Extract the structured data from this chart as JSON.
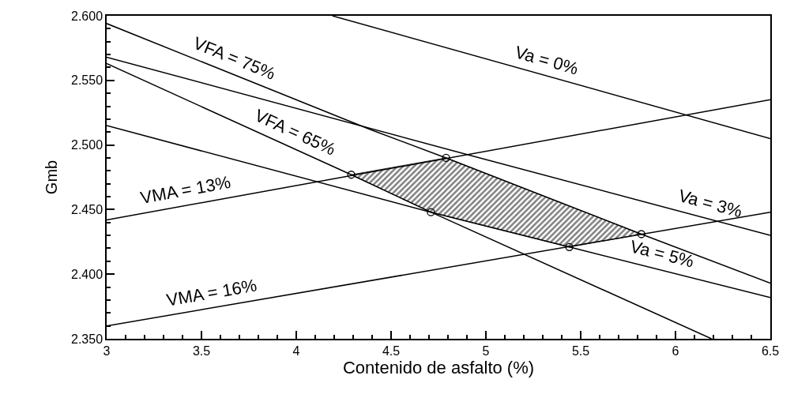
{
  "chart_data": {
    "type": "line",
    "xlabel": "Contenido de asfalto (%)",
    "ylabel": "Gmb",
    "xlim": [
      3,
      6.5
    ],
    "ylim": [
      2.35,
      2.6
    ],
    "xticks": [
      3,
      3.5,
      4,
      4.5,
      5,
      5.5,
      6,
      6.5,
      {
        "value": 3.1,
        "label": null
      },
      {
        "value": 3.2,
        "label": null
      },
      {
        "value": 3.3,
        "label": null
      },
      {
        "value": 3.4,
        "label": null
      },
      {
        "value": 3.6,
        "label": null
      },
      {
        "value": 3.7,
        "label": null
      },
      {
        "value": 3.8,
        "label": null
      },
      {
        "value": 3.9,
        "label": null
      },
      {
        "value": 4.1,
        "label": null
      },
      {
        "value": 4.2,
        "label": null
      },
      {
        "value": 4.3,
        "label": null
      },
      {
        "value": 4.4,
        "label": null
      },
      {
        "value": 4.6,
        "label": null
      },
      {
        "value": 4.7,
        "label": null
      },
      {
        "value": 4.8,
        "label": null
      },
      {
        "value": 4.9,
        "label": null
      },
      {
        "value": 5.1,
        "label": null
      },
      {
        "value": 5.2,
        "label": null
      },
      {
        "value": 5.3,
        "label": null
      },
      {
        "value": 5.4,
        "label": null
      },
      {
        "value": 5.6,
        "label": null
      },
      {
        "value": 5.7,
        "label": null
      },
      {
        "value": 5.8,
        "label": null
      },
      {
        "value": 5.9,
        "label": null
      },
      {
        "value": 6.1,
        "label": null
      },
      {
        "value": 6.2,
        "label": null
      },
      {
        "value": 6.3,
        "label": null
      },
      {
        "value": 6.4,
        "label": null
      }
    ],
    "yticks": [
      {
        "value": 2.35,
        "label": "2.350"
      },
      {
        "value": 2.4,
        "label": "2.400"
      },
      {
        "value": 2.45,
        "label": "2.450"
      },
      {
        "value": 2.5,
        "label": "2.500"
      },
      {
        "value": 2.55,
        "label": "2.550"
      },
      {
        "value": 2.6,
        "label": "2.600"
      },
      {
        "value": 2.36,
        "label": null
      },
      {
        "value": 2.37,
        "label": null
      },
      {
        "value": 2.38,
        "label": null
      },
      {
        "value": 2.39,
        "label": null
      },
      {
        "value": 2.41,
        "label": null
      },
      {
        "value": 2.42,
        "label": null
      },
      {
        "value": 2.43,
        "label": null
      },
      {
        "value": 2.44,
        "label": null
      },
      {
        "value": 2.46,
        "label": null
      },
      {
        "value": 2.47,
        "label": null
      },
      {
        "value": 2.48,
        "label": null
      },
      {
        "value": 2.49,
        "label": null
      },
      {
        "value": 2.51,
        "label": null
      },
      {
        "value": 2.52,
        "label": null
      },
      {
        "value": 2.53,
        "label": null
      },
      {
        "value": 2.54,
        "label": null
      },
      {
        "value": 2.56,
        "label": null
      },
      {
        "value": 2.57,
        "label": null
      },
      {
        "value": 2.58,
        "label": null
      },
      {
        "value": 2.59,
        "label": null
      }
    ],
    "series": [
      {
        "type": "area",
        "color": "#000000",
        "x": [
          4.29,
          4.79,
          5.82,
          5.44,
          4.71,
          4.29
        ],
        "values": [
          2.477,
          2.49,
          2.431,
          2.421,
          2.448,
          2.477
        ]
      },
      {
        "color": "#000000",
        "x": [
          4.19,
          6.5
        ],
        "values": [
          2.6,
          2.505
        ]
      },
      {
        "color": "#000000",
        "x": [
          3,
          6.5
        ],
        "values": [
          2.442,
          2.535
        ]
      },
      {
        "color": "#000000",
        "x": [
          3,
          4.39,
          4.79,
          5.82,
          6.5
        ],
        "values": [
          2.594,
          2.512,
          2.49,
          2.431,
          2.393
        ]
      },
      {
        "color": "#000000",
        "x": [
          3,
          4.89,
          6.5
        ],
        "values": [
          2.568,
          2.493,
          2.43
        ]
      },
      {
        "color": "#000000",
        "x": [
          3,
          4.29,
          4.71,
          6.19
        ],
        "values": [
          2.563,
          2.477,
          2.448,
          2.35
        ]
      },
      {
        "color": "#000000",
        "x": [
          3,
          4.71,
          5.44,
          6.5
        ],
        "values": [
          2.515,
          2.448,
          2.421,
          2.382
        ]
      },
      {
        "color": "#000000",
        "x": [
          3,
          6.5
        ],
        "values": [
          2.36,
          2.448
        ]
      },
      {
        "type": "scatter",
        "marker": "circle",
        "color": "#000000",
        "x": [
          4.29,
          4.79,
          5.82,
          5.44,
          4.71
        ],
        "values": [
          2.477,
          2.49,
          2.431,
          2.421,
          2.448
        ]
      }
    ],
    "annotations": [
      {
        "text": "VFA = 75%",
        "x": 3.64,
        "y": 2.556
      },
      {
        "text": "VFA = 65%",
        "x": 3.96,
        "y": 2.499
      },
      {
        "text": "Va = 0%",
        "x": 5.3,
        "y": 2.554
      },
      {
        "text": "Va = 3%",
        "x": 6.16,
        "y": 2.443
      },
      {
        "text": "Va = 5%",
        "x": 5.91,
        "y": 2.404
      },
      {
        "text": "VMA = 13%",
        "x": 3.43,
        "y": 2.453
      },
      {
        "text": "VMA = 16%",
        "x": 3.57,
        "y": 2.374
      }
    ]
  }
}
